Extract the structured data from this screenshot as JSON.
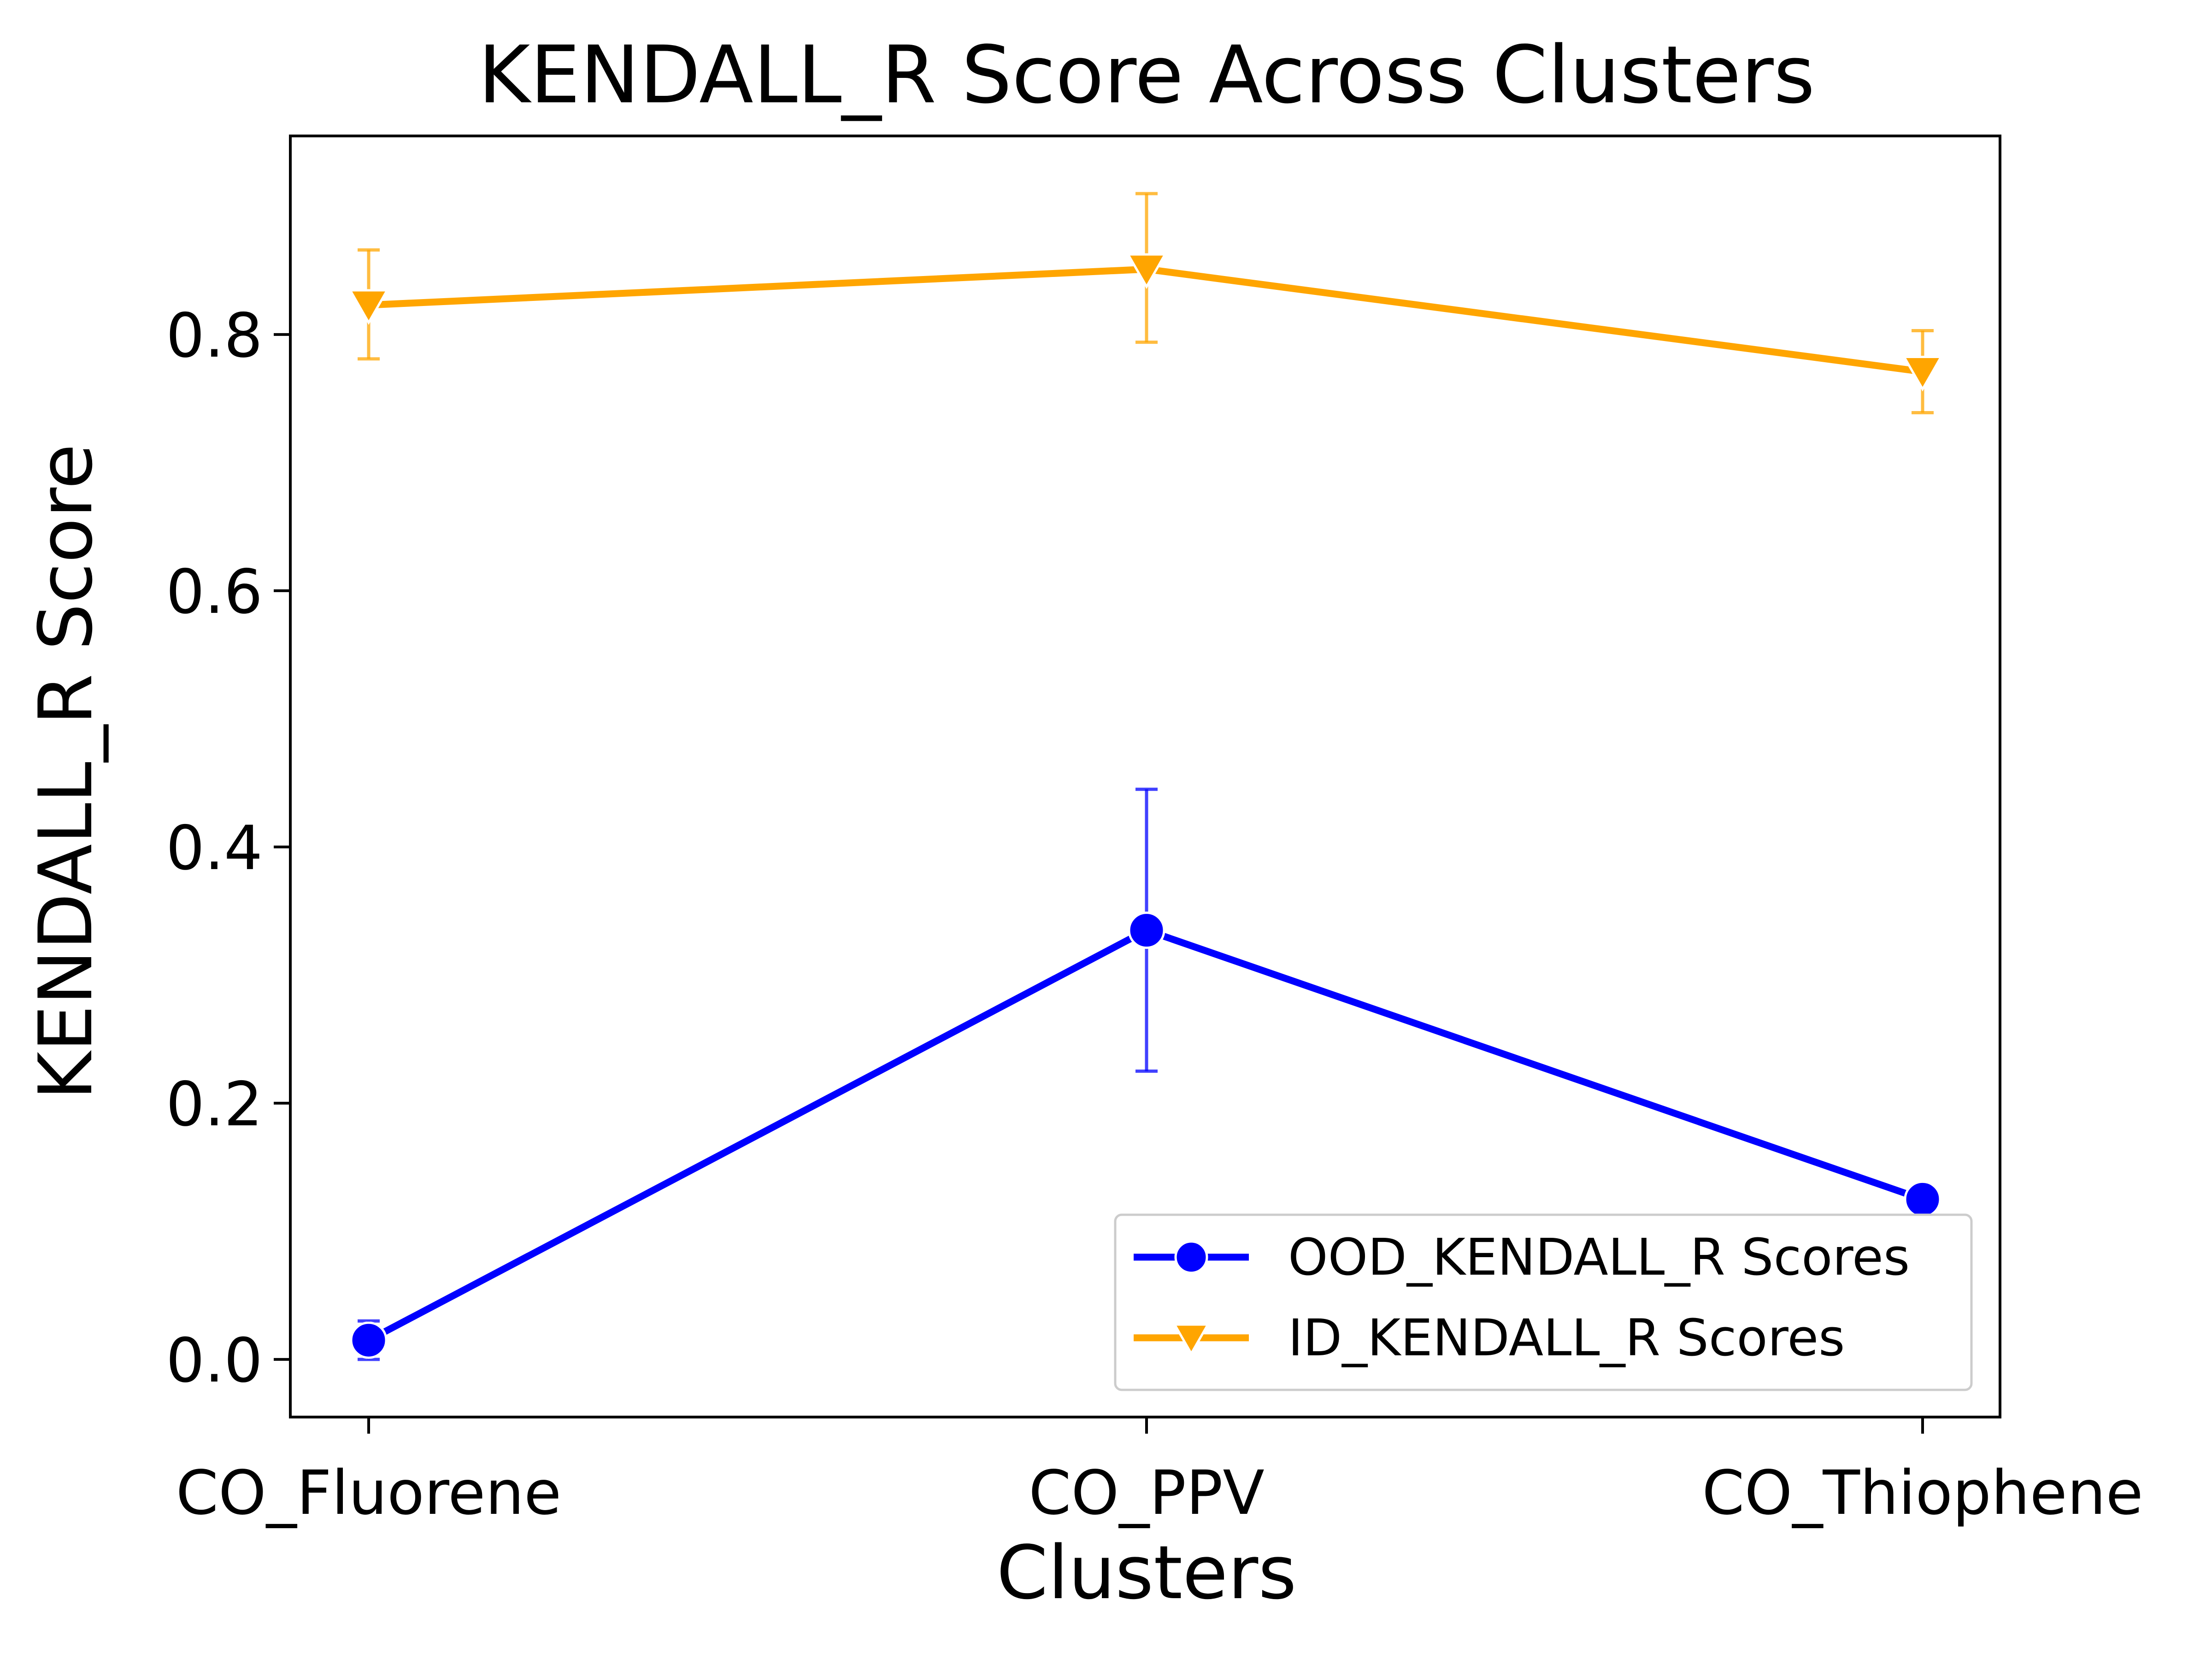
{
  "chart_data": {
    "type": "line",
    "title": "KENDALL_R Score Across Clusters",
    "xlabel": "Clusters",
    "ylabel": "KENDALL_R Score",
    "categories": [
      "CO_Fluorene",
      "CO_PPV",
      "CO_Thiophene"
    ],
    "ylim": [
      -0.045,
      0.955
    ],
    "yticks": [
      0.0,
      0.2,
      0.4,
      0.6,
      0.8
    ],
    "ytick_labels": [
      "0.0",
      "0.2",
      "0.4",
      "0.6",
      "0.8"
    ],
    "grid": false,
    "legend_position": "lower-right",
    "series": [
      {
        "name": "OOD_KENDALL_R Scores",
        "values": [
          0.015,
          0.335,
          0.125
        ],
        "error_low": [
          0.0,
          0.225,
          0.125
        ],
        "error_high": [
          0.03,
          0.445,
          0.125
        ],
        "color": "#0000ff",
        "marker": "circle"
      },
      {
        "name": "ID_KENDALL_R Scores",
        "values": [
          0.823,
          0.851,
          0.771
        ],
        "error_low": [
          0.781,
          0.794,
          0.739
        ],
        "error_high": [
          0.866,
          0.91,
          0.803
        ],
        "color": "#ffa500",
        "marker": "triangle-down"
      }
    ]
  }
}
